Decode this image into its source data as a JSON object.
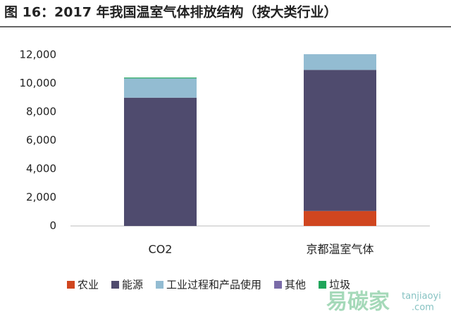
{
  "chart_data": {
    "type": "stacked_bar",
    "title": "图 16：2017 年我国温室气体排放结构（按大类行业）",
    "categories": [
      "CO2",
      "京都温室气体"
    ],
    "series": [
      {
        "name": "农业",
        "color": "#d0461f",
        "values": [
          0,
          1050
        ]
      },
      {
        "name": "能源",
        "color": "#4f4b6e",
        "values": [
          9000,
          9900
        ]
      },
      {
        "name": "工业过程和产品使用",
        "color": "#93bcd2",
        "values": [
          1350,
          1100
        ]
      },
      {
        "name": "其他",
        "color": "#7a6ba8",
        "values": [
          0,
          0
        ]
      },
      {
        "name": "垃圾",
        "color": "#1fa55a",
        "values": [
          60,
          0
        ]
      }
    ],
    "ylim": [
      0,
      12000
    ],
    "yticks": [
      0,
      {
        "value": 2000,
        "label": "2,000"
      },
      {
        "value": 4000,
        "label": "4,000"
      },
      {
        "value": 6000,
        "label": "6,000"
      },
      {
        "value": 8000,
        "label": "8,000"
      },
      {
        "value": 10000,
        "label": "10,000"
      },
      {
        "value": 12000,
        "label": "12,000"
      }
    ],
    "watermark": [
      "易碳家",
      "tanjiaoyi",
      ".com"
    ]
  }
}
